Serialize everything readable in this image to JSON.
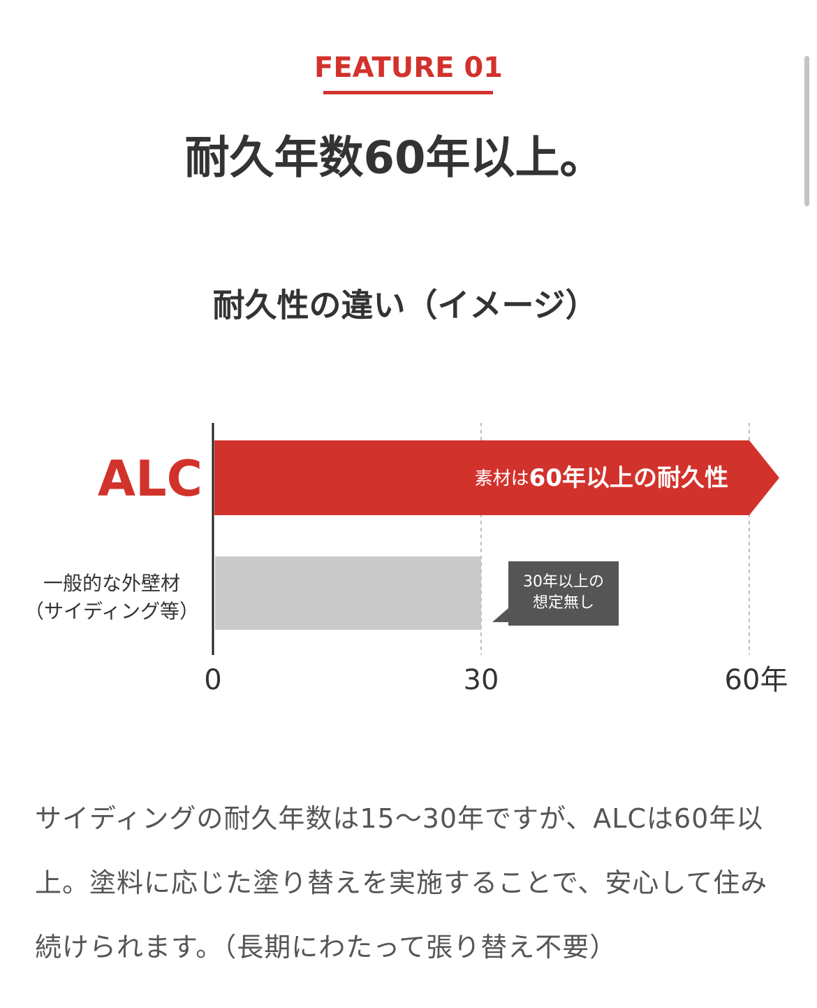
{
  "feature_label": "FEATURE 01",
  "headline": "耐久年数60年以上。",
  "chart_data": {
    "type": "bar",
    "orientation": "horizontal",
    "title": "耐久性の違い（イメージ）",
    "categories": [
      "ALC",
      "一般的な外壁材\n（サイディング等）"
    ],
    "values": [
      60,
      30
    ],
    "colors": [
      "#d2322c",
      "#c9c9c9"
    ],
    "xlim": [
      0,
      60
    ],
    "xticks": [
      0,
      30,
      {
        "value": 60,
        "label": "60年"
      }
    ],
    "grid": true,
    "annotations": [
      {
        "small": "素材は",
        "large": "60年以上の耐久性"
      },
      {
        "text": "30年以上の\n想定無し"
      }
    ]
  },
  "paragraph": "サイディングの耐久年数は15〜30年ですが、ALCは60年以上。塗料に応じた塗り替えを実施することで、安心して住み続けられます。（長期にわたって張り替え不要）"
}
